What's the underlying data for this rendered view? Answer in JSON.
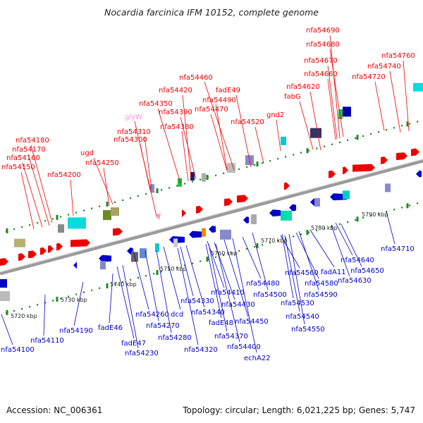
{
  "title": "Nocardia farcinica IFM 10152, complete genome",
  "footer": {
    "accession": "Accession: NC_006361",
    "summary": "Topology: circular; Length: 6,021,225 bp; Genes: 5,747"
  },
  "colors": {
    "forward_strand": "#ee0000",
    "reverse_strand": "#0000cc",
    "trna": "#ff99cc",
    "backbone": "#999999",
    "tick": "#228822"
  },
  "scale_labels": [
    "5720 kbp",
    "5730 kbp",
    "5740 kbp",
    "5750 kbp",
    "5760 kbp",
    "5770 kbp",
    "5780 kbp",
    "5790 kbp"
  ],
  "top_gene_labels": [
    "nfa54690",
    "nfa54680",
    "nfa54760",
    "nfa54670",
    "nfa54740",
    "nfa54660",
    "nfa54720",
    "nfa54460",
    "nfa54620",
    "nfa54420",
    "fadE49",
    "fabG",
    "nfa54490",
    "nfa54350",
    "nfa54470",
    "nfa54390",
    "gnd2",
    "nfa54520",
    "nfa54380",
    "nfa54310",
    "nfa54300",
    "nfa54180",
    "nfa54170",
    "ugd",
    "nfa54160",
    "nfa54250",
    "nfa54150",
    "nfa54200"
  ],
  "pink_gene_labels": [
    "glyW"
  ],
  "bottom_gene_labels": [
    "nfa54710",
    "nfa54640",
    "nfa54650",
    "nfa54560",
    "fadA11",
    "nfa54630",
    "nfa54480",
    "nfa54580",
    "nfa54500",
    "nfa54590",
    "nfa54530",
    "nfa54540",
    "nfa54550",
    "nfa54410",
    "nfa54330",
    "nfa54430",
    "nfa54340",
    "nfa54260",
    "dcd",
    "fadE48",
    "nfa54450",
    "nfa54270",
    "nfa54370",
    "nfa54280",
    "nfa54400",
    "nfa54320",
    "echA22",
    "nfa54190",
    "fadE46",
    "fadE47",
    "nfa54230",
    "nfa54110",
    "nfa54100"
  ]
}
